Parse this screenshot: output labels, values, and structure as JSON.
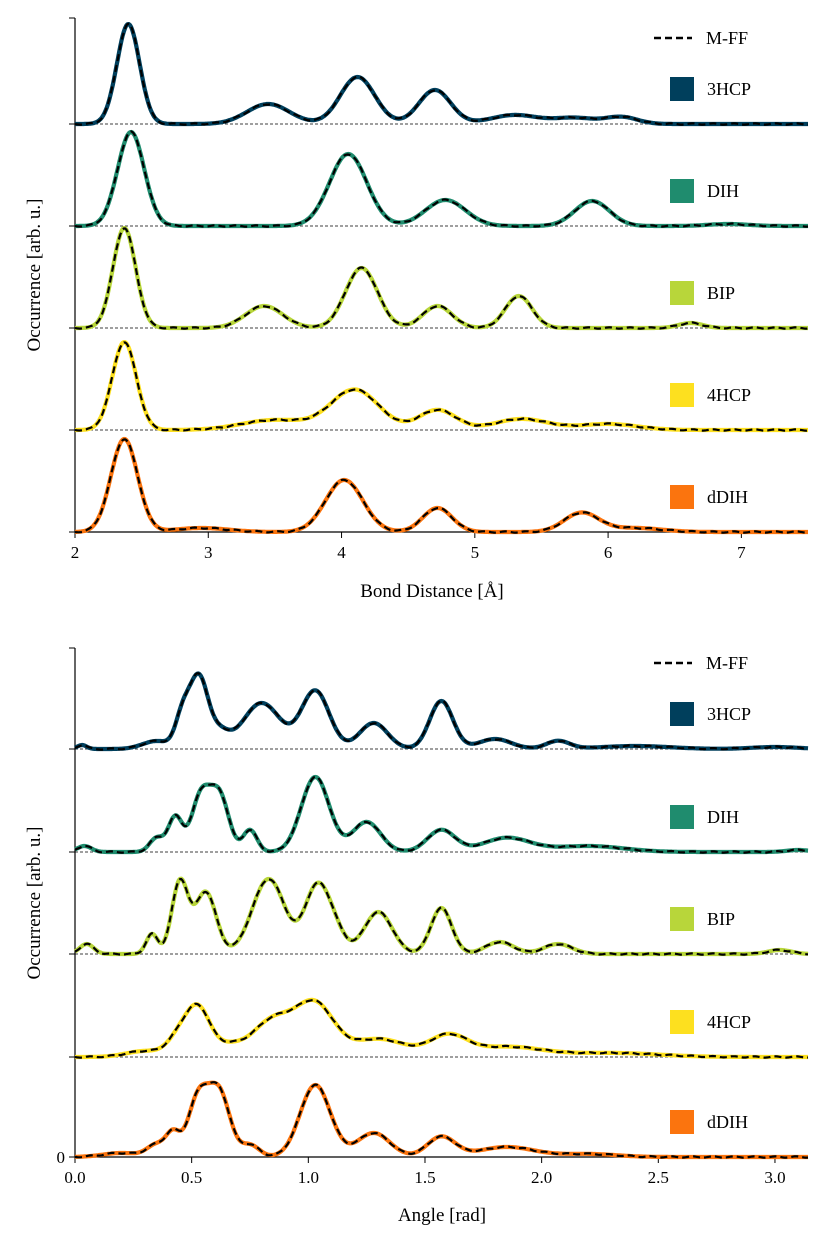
{
  "chart_data": [
    {
      "type": "line",
      "layout": "stacked-offset",
      "xlabel": "Bond Distance [Å]",
      "ylabel": "Occurrence [arb. u.]",
      "xlim": [
        2,
        7.5
      ],
      "xticks": [
        "2",
        "3",
        "4",
        "5",
        "6",
        "7"
      ],
      "yticks": [],
      "grid": false,
      "baseline_dashed": true,
      "reference": {
        "name": "M-FF",
        "style": "black dashed"
      },
      "series": [
        {
          "name": "3HCP",
          "color": "#003f5c",
          "peaks": [
            [
              2.4,
              1.0,
              0.085
            ],
            [
              3.45,
              0.2,
              0.16
            ],
            [
              4.12,
              0.47,
              0.13
            ],
            [
              4.7,
              0.34,
              0.12
            ],
            [
              5.3,
              0.09,
              0.18
            ],
            [
              5.75,
              0.06,
              0.15
            ],
            [
              6.1,
              0.07,
              0.12
            ]
          ]
        },
        {
          "name": "DIH",
          "color": "#1f8c6e",
          "peaks": [
            [
              2.42,
              0.94,
              0.1
            ],
            [
              4.05,
              0.72,
              0.14
            ],
            [
              4.78,
              0.26,
              0.15
            ],
            [
              5.88,
              0.25,
              0.13
            ],
            [
              6.9,
              0.02,
              0.15
            ]
          ]
        },
        {
          "name": "BIP",
          "color": "#b8d63a",
          "peaks": [
            [
              2.37,
              1.0,
              0.085
            ],
            [
              3.42,
              0.22,
              0.14
            ],
            [
              4.15,
              0.6,
              0.12
            ],
            [
              4.72,
              0.22,
              0.11
            ],
            [
              5.33,
              0.32,
              0.1
            ],
            [
              6.62,
              0.05,
              0.09
            ]
          ]
        },
        {
          "name": "4HCP",
          "color": "#fde01f",
          "peaks": [
            [
              2.37,
              0.88,
              0.09
            ],
            [
              3.5,
              0.1,
              0.25
            ],
            [
              4.1,
              0.4,
              0.18
            ],
            [
              4.72,
              0.2,
              0.14
            ],
            [
              5.35,
              0.11,
              0.2
            ],
            [
              6.0,
              0.06,
              0.22
            ]
          ]
        },
        {
          "name": "dDIH",
          "color": "#fb740e",
          "peaks": [
            [
              2.37,
              0.93,
              0.1
            ],
            [
              2.95,
              0.04,
              0.2
            ],
            [
              4.02,
              0.52,
              0.14
            ],
            [
              4.72,
              0.24,
              0.11
            ],
            [
              5.8,
              0.19,
              0.13
            ],
            [
              6.2,
              0.04,
              0.2
            ]
          ]
        }
      ]
    },
    {
      "type": "line",
      "layout": "stacked-offset",
      "xlabel": "Angle [rad]",
      "ylabel": "Occurrence [arb. u.]",
      "xlim": [
        0,
        3.14159
      ],
      "xticks": [
        "0.0",
        "0.5",
        "1.0",
        "1.5",
        "2.0",
        "2.5",
        "3.0"
      ],
      "yticks": [
        "0"
      ],
      "grid": false,
      "baseline_dashed": true,
      "reference": {
        "name": "M-FF",
        "style": "black dashed"
      },
      "series": [
        {
          "name": "3HCP",
          "color": "#003f5c",
          "peaks": [
            [
              0.03,
              0.04,
              0.02
            ],
            [
              0.35,
              0.08,
              0.06
            ],
            [
              0.46,
              0.3,
              0.03
            ],
            [
              0.53,
              0.72,
              0.04
            ],
            [
              0.62,
              0.15,
              0.04
            ],
            [
              0.8,
              0.46,
              0.08
            ],
            [
              1.03,
              0.58,
              0.06
            ],
            [
              1.28,
              0.26,
              0.06
            ],
            [
              1.57,
              0.48,
              0.05
            ],
            [
              1.8,
              0.1,
              0.07
            ],
            [
              2.07,
              0.08,
              0.05
            ],
            [
              2.4,
              0.03,
              0.15
            ],
            [
              3.0,
              0.02,
              0.1
            ]
          ]
        },
        {
          "name": "DIH",
          "color": "#1f8c6e",
          "peaks": [
            [
              0.04,
              0.06,
              0.03
            ],
            [
              0.35,
              0.14,
              0.03
            ],
            [
              0.43,
              0.35,
              0.03
            ],
            [
              0.54,
              0.56,
              0.04
            ],
            [
              0.62,
              0.55,
              0.04
            ],
            [
              0.75,
              0.22,
              0.03
            ],
            [
              1.03,
              0.75,
              0.06
            ],
            [
              1.25,
              0.3,
              0.06
            ],
            [
              1.57,
              0.22,
              0.06
            ],
            [
              1.85,
              0.14,
              0.1
            ],
            [
              2.2,
              0.06,
              0.15
            ],
            [
              3.1,
              0.02,
              0.05
            ]
          ]
        },
        {
          "name": "BIP",
          "color": "#b8d63a",
          "peaks": [
            [
              0.05,
              0.1,
              0.03
            ],
            [
              0.33,
              0.2,
              0.025
            ],
            [
              0.45,
              0.72,
              0.035
            ],
            [
              0.56,
              0.62,
              0.045
            ],
            [
              0.83,
              0.75,
              0.07
            ],
            [
              1.03,
              0.58,
              0.05
            ],
            [
              1.1,
              0.28,
              0.05
            ],
            [
              1.3,
              0.42,
              0.06
            ],
            [
              1.57,
              0.46,
              0.045
            ],
            [
              1.82,
              0.12,
              0.06
            ],
            [
              2.07,
              0.1,
              0.06
            ],
            [
              3.02,
              0.04,
              0.05
            ]
          ]
        },
        {
          "name": "4HCP",
          "color": "#fde01f",
          "peaks": [
            [
              0.3,
              0.06,
              0.08
            ],
            [
              0.45,
              0.2,
              0.05
            ],
            [
              0.53,
              0.45,
              0.05
            ],
            [
              0.65,
              0.1,
              0.06
            ],
            [
              0.85,
              0.37,
              0.09
            ],
            [
              1.03,
              0.5,
              0.08
            ],
            [
              1.3,
              0.18,
              0.12
            ],
            [
              1.6,
              0.2,
              0.08
            ],
            [
              1.85,
              0.1,
              0.15
            ],
            [
              2.3,
              0.04,
              0.2
            ]
          ]
        },
        {
          "name": "dDIH",
          "color": "#fb740e",
          "peaks": [
            [
              0.2,
              0.04,
              0.08
            ],
            [
              0.35,
              0.12,
              0.04
            ],
            [
              0.42,
              0.22,
              0.03
            ],
            [
              0.53,
              0.6,
              0.045
            ],
            [
              0.62,
              0.62,
              0.045
            ],
            [
              0.75,
              0.12,
              0.04
            ],
            [
              1.03,
              0.72,
              0.065
            ],
            [
              1.28,
              0.24,
              0.07
            ],
            [
              1.57,
              0.2,
              0.06
            ],
            [
              1.85,
              0.1,
              0.12
            ],
            [
              2.2,
              0.03,
              0.12
            ]
          ]
        }
      ]
    }
  ]
}
